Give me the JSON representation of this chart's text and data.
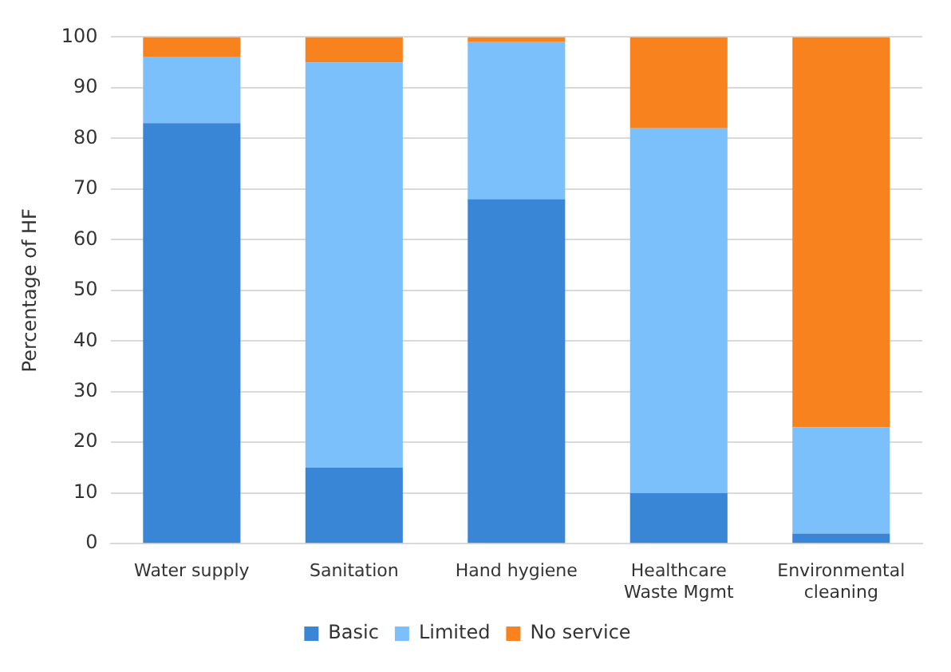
{
  "chart_data": {
    "type": "bar",
    "stacked": true,
    "ylabel": "Percentage of HF",
    "categories": [
      "Water supply",
      "Sanitation",
      "Hand hygiene",
      "Healthcare Waste Mgmt",
      "Environmental cleaning"
    ],
    "series": [
      {
        "name": "Basic",
        "color": "#3a86d6",
        "values": [
          83,
          15,
          68,
          10,
          2
        ]
      },
      {
        "name": "Limited",
        "color": "#7bc0fa",
        "values": [
          13,
          80,
          31,
          72,
          21
        ]
      },
      {
        "name": "No service",
        "color": "#f7821e",
        "values": [
          4,
          5,
          1,
          18,
          77
        ]
      }
    ],
    "ylim": [
      0,
      100
    ],
    "yticks": [
      0,
      10,
      20,
      30,
      40,
      50,
      60,
      70,
      80,
      90,
      100
    ],
    "grid": "y",
    "legend": "bottom"
  }
}
